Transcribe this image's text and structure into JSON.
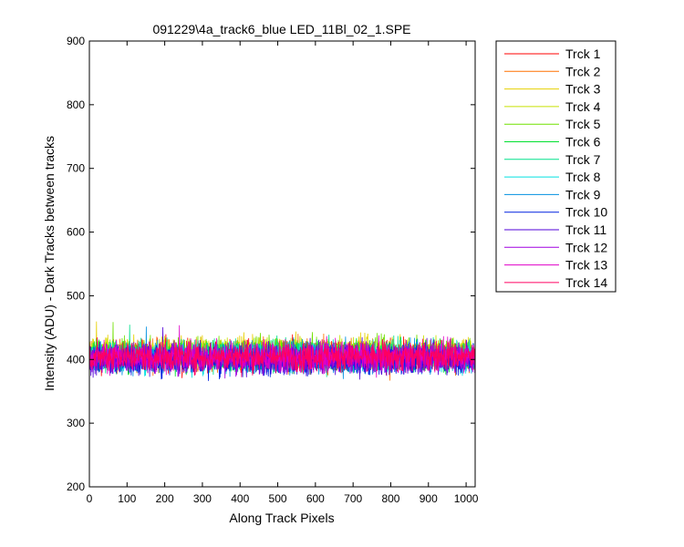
{
  "chart_data": {
    "type": "line",
    "title": "091229\\4a_track6_blue LED_11Bl_02_1.SPE",
    "xlabel": "Along Track Pixels",
    "ylabel": "Intensity (ADU) - Dark Tracks between tracks",
    "xlim": [
      0,
      1024
    ],
    "ylim": [
      200,
      900
    ],
    "x_ticks": [
      0,
      100,
      200,
      300,
      400,
      500,
      600,
      700,
      800,
      900,
      1000
    ],
    "y_ticks": [
      200,
      300,
      400,
      500,
      600,
      700,
      800,
      900
    ],
    "x_tick_labels": [
      "0",
      "100",
      "200",
      "300",
      "400",
      "500",
      "600",
      "700",
      "800",
      "900",
      "1000"
    ],
    "y_tick_labels": [
      "200",
      "300",
      "400",
      "500",
      "600",
      "700",
      "800",
      "900"
    ],
    "grid": false,
    "legend_position": "outside-top-right",
    "points_per_series": 1024,
    "series": [
      {
        "name": "Trck 1",
        "color": "#ff0000",
        "mean": 405,
        "noise": 12
      },
      {
        "name": "Trck 2",
        "color": "#ff7000",
        "mean": 407,
        "noise": 12
      },
      {
        "name": "Trck 3",
        "color": "#e6d000",
        "mean": 410,
        "noise": 12
      },
      {
        "name": "Trck 4",
        "color": "#c8e000",
        "mean": 411,
        "noise": 12
      },
      {
        "name": "Trck 5",
        "color": "#70e000",
        "mean": 409,
        "noise": 12
      },
      {
        "name": "Trck 6",
        "color": "#00e030",
        "mean": 406,
        "noise": 12
      },
      {
        "name": "Trck 7",
        "color": "#00e08c",
        "mean": 405,
        "noise": 12
      },
      {
        "name": "Trck 8",
        "color": "#00e0e0",
        "mean": 404,
        "noise": 12
      },
      {
        "name": "Trck 9",
        "color": "#0090e0",
        "mean": 402,
        "noise": 12
      },
      {
        "name": "Trck 10",
        "color": "#0020e0",
        "mean": 399,
        "noise": 12
      },
      {
        "name": "Trck 11",
        "color": "#5000d8",
        "mean": 401,
        "noise": 12
      },
      {
        "name": "Trck 12",
        "color": "#a000e0",
        "mean": 403,
        "noise": 12
      },
      {
        "name": "Trck 13",
        "color": "#e000c8",
        "mean": 404,
        "noise": 12
      },
      {
        "name": "Trck 14",
        "color": "#ff0060",
        "mean": 405,
        "noise": 12
      }
    ]
  }
}
